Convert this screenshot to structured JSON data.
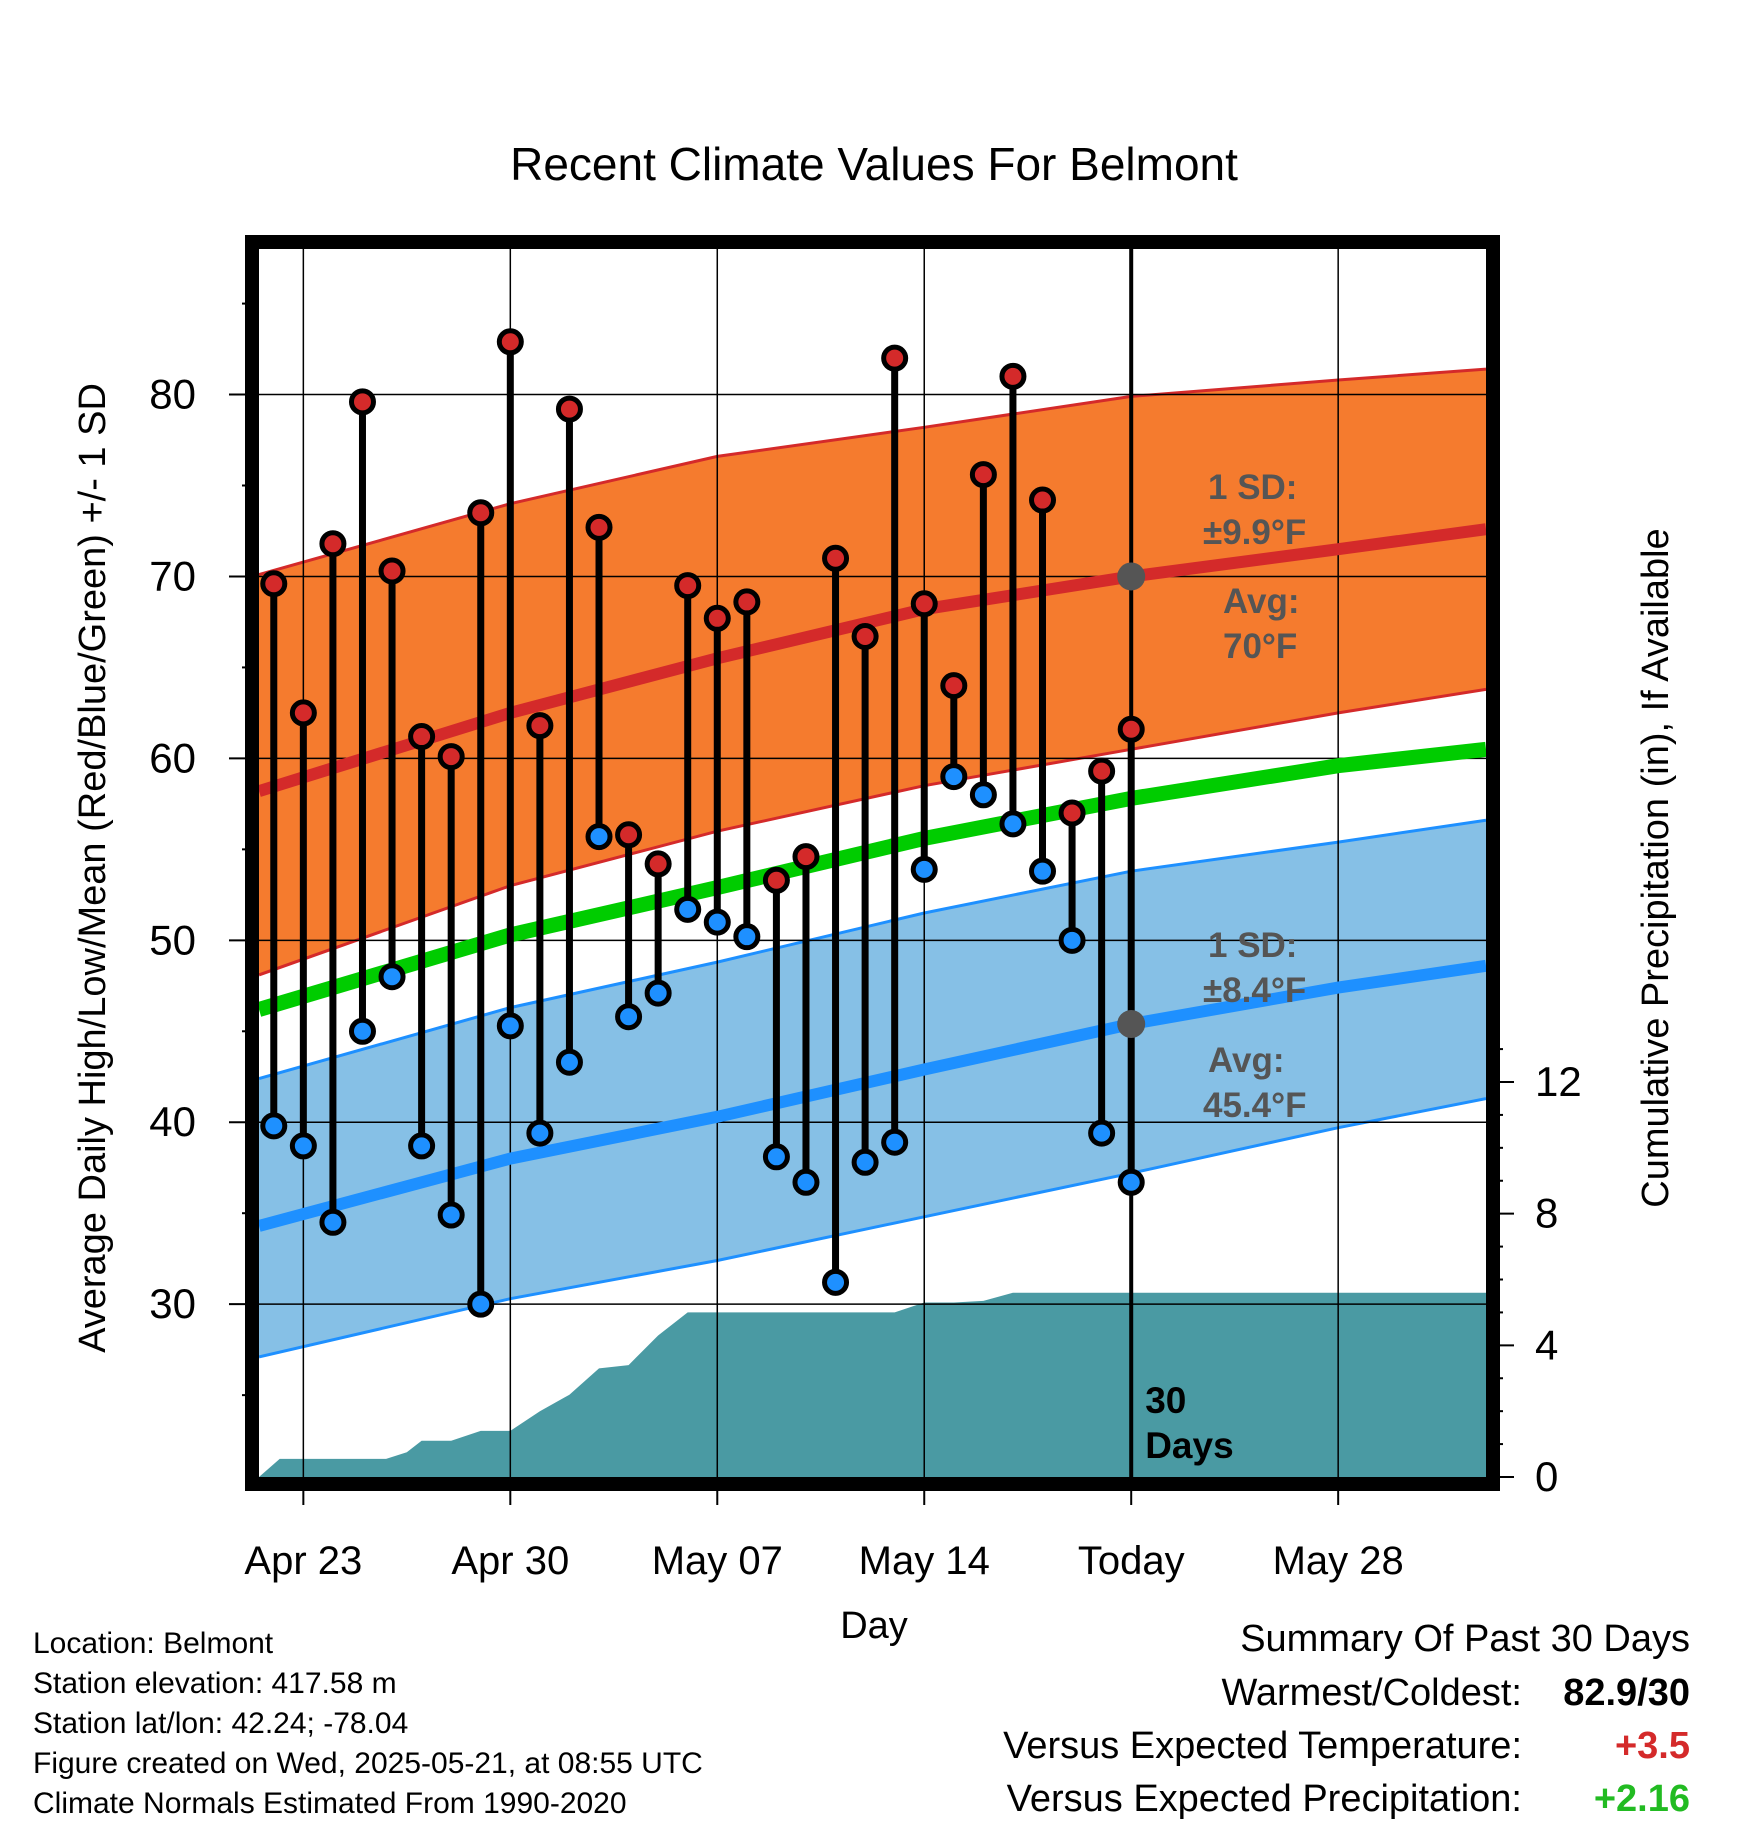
{
  "chart_data": {
    "type": "line",
    "title": "Recent Climate Values For Belmont",
    "xlabel": "Day",
    "ylabel": "Average Daily High/Low/Mean (Red/Blue/Green) +/- 1 SD",
    "y2label": "Cumulative Precipitation (in), If Available",
    "x_day_range": [
      -29.5,
      12
    ],
    "x_ticks": [
      {
        "day": -28,
        "label": "Apr 23"
      },
      {
        "day": -21,
        "label": "Apr 30"
      },
      {
        "day": -14,
        "label": "May 07"
      },
      {
        "day": -7,
        "label": "May 14"
      },
      {
        "day": 0,
        "label": "Today"
      },
      {
        "day": 7,
        "label": "May 28"
      }
    ],
    "ylim": [
      20.5,
      88
    ],
    "y_ticks": [
      30,
      40,
      50,
      60,
      70,
      80
    ],
    "y2lim": [
      0,
      12
    ],
    "y2_ticks": [
      0,
      4,
      8,
      12
    ],
    "grid": true,
    "today_marker": {
      "day": 0,
      "label_line1": "30",
      "label_line2": "Days"
    },
    "normals": {
      "day": [
        -29.5,
        -21,
        -14,
        -7,
        0,
        7,
        12
      ],
      "high_mean": [
        58.2,
        62.5,
        65.5,
        68.2,
        70.0,
        71.5,
        72.6
      ],
      "high_upper": [
        70.1,
        74.0,
        76.6,
        78.2,
        79.9,
        80.8,
        81.4
      ],
      "high_lower": [
        48.1,
        53.0,
        56.0,
        58.5,
        60.5,
        62.5,
        63.8
      ],
      "low_mean": [
        34.3,
        38.0,
        40.3,
        42.9,
        45.4,
        47.4,
        48.6
      ],
      "low_upper": [
        42.4,
        46.3,
        48.8,
        51.5,
        53.8,
        55.4,
        56.6
      ],
      "low_lower": [
        27.1,
        30.3,
        32.4,
        34.8,
        37.2,
        39.7,
        41.3
      ],
      "mean": [
        46.2,
        50.3,
        52.9,
        55.6,
        57.8,
        59.6,
        60.5
      ]
    },
    "series": [
      {
        "name": "High",
        "color": "#d42a2a",
        "values": [
          69.6,
          62.5,
          71.8,
          79.6,
          70.3,
          61.2,
          60.1,
          73.5,
          82.9,
          61.8,
          79.2,
          72.7,
          55.8,
          54.2,
          69.5,
          67.7,
          68.6,
          53.3,
          54.6,
          71.0,
          66.7,
          82.0,
          68.5,
          64.0,
          75.6,
          81.0,
          74.2,
          57.0,
          59.3,
          61.6
        ]
      },
      {
        "name": "Low",
        "color": "#1e90ff",
        "values": [
          39.8,
          38.7,
          34.5,
          45.0,
          48.0,
          38.7,
          34.9,
          30.0,
          45.3,
          39.4,
          43.3,
          55.7,
          45.8,
          47.1,
          51.7,
          51.0,
          50.2,
          38.1,
          36.7,
          31.2,
          37.8,
          38.9,
          53.9,
          59.0,
          58.0,
          56.4,
          53.8,
          50.0,
          39.4,
          36.7
        ]
      }
    ],
    "days": [
      -29,
      -28,
      -27,
      -26,
      -25,
      -24,
      -23,
      -22,
      -21,
      -20,
      -19,
      -18,
      -17,
      -16,
      -15,
      -14,
      -13,
      -12,
      -11,
      -10,
      -9,
      -8,
      -7,
      -6,
      -5,
      -4,
      -3,
      -2,
      -1,
      0
    ],
    "precip_day": [
      -29.5,
      -28.8,
      -25.2,
      -24.5,
      -24.0,
      -23.0,
      -22.0,
      -21.0,
      -20.0,
      -19.0,
      -18.0,
      -17.0,
      -16.0,
      -15.0,
      -14.0,
      -13.0,
      -12.0,
      -11.0,
      -10.0,
      -9.0,
      -8.0,
      -7.0,
      -6.0,
      -5.0,
      -4.0,
      -3.0,
      12
    ],
    "precip_values": [
      0.0,
      0.55,
      0.55,
      0.75,
      1.1,
      1.1,
      1.4,
      1.4,
      2.0,
      2.5,
      3.3,
      3.4,
      4.3,
      5.0,
      5.0,
      5.0,
      5.0,
      5.0,
      5.0,
      5.0,
      5.0,
      5.3,
      5.3,
      5.35,
      5.6,
      5.6,
      5.6
    ],
    "annotations": {
      "high_sd_label": "1 SD:",
      "high_sd_value": "±9.9°F",
      "high_avg_label": "Avg:",
      "high_avg_value": "70°F",
      "low_sd_label": "1 SD:",
      "low_sd_value": "±8.4°F",
      "low_avg_label": "Avg:",
      "low_avg_value": "45.4°F"
    },
    "colors": {
      "high_band": "#f57b2e",
      "high_line": "#d42a2a",
      "low_band": "#86c0e6",
      "low_line": "#1e90ff",
      "mean_line": "#00cc00",
      "precip": "#4a9aa3",
      "marker": "#555555",
      "annotation": "#555555"
    }
  },
  "info": {
    "location": "Location: Belmont",
    "elevation": "Station elevation: 417.58 m",
    "latlon": "Station lat/lon: 42.24; -78.04",
    "created": "Figure created on Wed, 2025-05-21, at 08:55 UTC",
    "normals": "Climate Normals Estimated From 1990-2020"
  },
  "summary": {
    "title": "Summary Of Past 30 Days",
    "warmest_label": "Warmest/Coldest:",
    "warmest_value": "82.9/30",
    "temp_label": "Versus Expected Temperature:",
    "temp_value": "+3.5",
    "temp_color": "#d42a2a",
    "precip_label": "Versus Expected Precipitation:",
    "precip_value": "+2.16",
    "precip_color": "#22bb22"
  }
}
